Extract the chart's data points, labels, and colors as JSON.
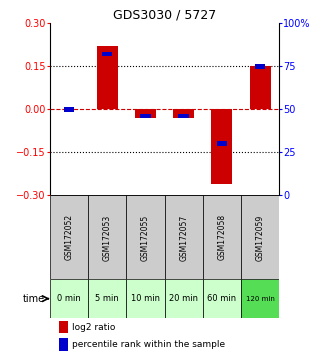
{
  "title": "GDS3030 / 5727",
  "samples": [
    "GSM172052",
    "GSM172053",
    "GSM172055",
    "GSM172057",
    "GSM172058",
    "GSM172059"
  ],
  "time_labels": [
    "0 min",
    "5 min",
    "10 min",
    "20 min",
    "60 min",
    "120 min"
  ],
  "log2_ratio": [
    0.0,
    0.22,
    -0.03,
    -0.03,
    -0.26,
    0.15
  ],
  "percentile_rank": [
    50,
    82,
    46,
    46,
    30,
    75
  ],
  "ylim_left": [
    -0.3,
    0.3
  ],
  "ylim_right": [
    0,
    100
  ],
  "yticks_left": [
    -0.3,
    -0.15,
    0,
    0.15,
    0.3
  ],
  "yticks_right": [
    0,
    25,
    50,
    75,
    100
  ],
  "bar_color_red": "#cc0000",
  "bar_color_blue": "#0000cc",
  "zero_line_color": "#cc0000",
  "dotted_line_color": "#000000",
  "sample_bg_color": "#cccccc",
  "time_bg_color_light": "#ccffcc",
  "time_bg_color_dark": "#55dd55",
  "legend_red_label": "log2 ratio",
  "legend_blue_label": "percentile rank within the sample",
  "time_label": "time"
}
